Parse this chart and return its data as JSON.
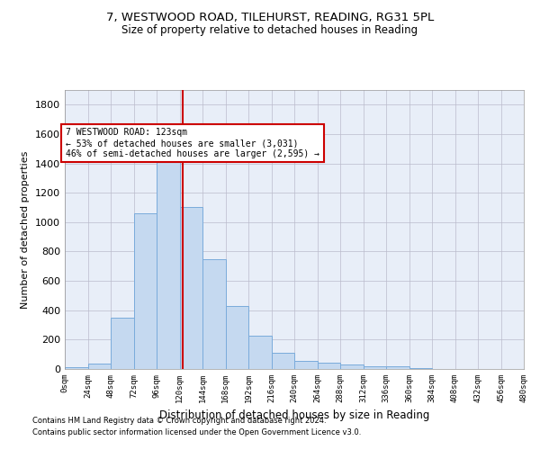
{
  "title_line1": "7, WESTWOOD ROAD, TILEHURST, READING, RG31 5PL",
  "title_line2": "Size of property relative to detached houses in Reading",
  "xlabel": "Distribution of detached houses by size in Reading",
  "ylabel": "Number of detached properties",
  "bar_color": "#c5d9f0",
  "bar_edge_color": "#7aabdb",
  "background_color": "#e8eef8",
  "grid_color": "#bbbbcc",
  "annotation_text": "7 WESTWOOD ROAD: 123sqm\n← 53% of detached houses are smaller (3,031)\n46% of semi-detached houses are larger (2,595) →",
  "vline_color": "#cc0000",
  "vline_x": 123,
  "footnote1": "Contains HM Land Registry data © Crown copyright and database right 2024.",
  "footnote2": "Contains public sector information licensed under the Open Government Licence v3.0.",
  "bin_edges": [
    0,
    24,
    48,
    72,
    96,
    120,
    144,
    168,
    192,
    216,
    240,
    264,
    288,
    312,
    336,
    360,
    384,
    408,
    432,
    456,
    480
  ],
  "bin_counts": [
    10,
    35,
    350,
    1060,
    1470,
    1105,
    745,
    430,
    225,
    110,
    55,
    45,
    30,
    20,
    18,
    5,
    3,
    2,
    1,
    1
  ],
  "ylim": [
    0,
    1900
  ],
  "xlim": [
    0,
    480
  ],
  "yticks": [
    0,
    200,
    400,
    600,
    800,
    1000,
    1200,
    1400,
    1600,
    1800
  ]
}
